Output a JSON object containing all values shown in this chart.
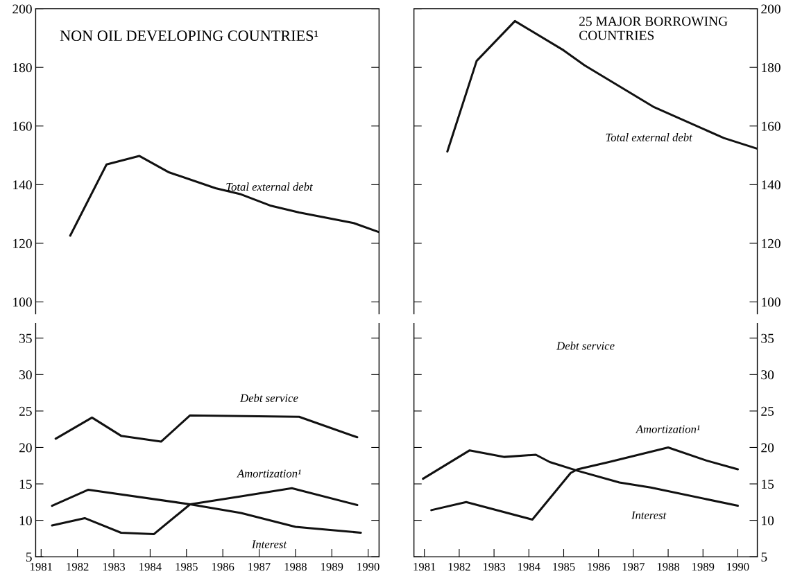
{
  "chart_data": [
    {
      "type": "line",
      "title": "NON OIL DEVELOPING COUNTRIES¹",
      "xlim": [
        1980.85,
        1990.3
      ],
      "ylim": [
        96,
        200
      ],
      "yticks": [
        100,
        120,
        140,
        160,
        180,
        200
      ],
      "tick_labels": "y",
      "grid": false,
      "legend": false,
      "series": [
        {
          "name": "Total external debt",
          "color": "#111111",
          "x": [
            1981.8,
            1982.8,
            1983.7,
            1984.5,
            1985.8,
            1986.5,
            1987.3,
            1988.1,
            1989.6,
            1990.3
          ],
          "values": [
            122.6,
            146.9,
            149.8,
            144.3,
            138.8,
            136.7,
            132.9,
            130.5,
            126.9,
            123.8
          ]
        }
      ]
    },
    {
      "type": "line",
      "xlim": [
        1980.85,
        1990.3
      ],
      "xticks": [
        1981,
        1982,
        1983,
        1984,
        1985,
        1986,
        1987,
        1988,
        1989,
        1990
      ],
      "ylim": [
        5,
        37
      ],
      "yticks": [
        5,
        10,
        15,
        20,
        25,
        30,
        35
      ],
      "grid": false,
      "legend": false,
      "series": [
        {
          "name": "Debt service",
          "color": "#111111",
          "x": [
            1981.4,
            1982.4,
            1983.2,
            1984.3,
            1985.1,
            1988.1,
            1989.7
          ],
          "values": [
            21.2,
            24.1,
            21.6,
            20.8,
            24.4,
            24.2,
            21.4
          ]
        },
        {
          "name": "Amortization¹",
          "color": "#111111",
          "x": [
            1981.3,
            1982.2,
            1983.2,
            1984.1,
            1985.1,
            1986.5,
            1987.9,
            1989.7
          ],
          "values": [
            9.3,
            10.3,
            8.3,
            8.1,
            12.2,
            13.3,
            14.4,
            12.1
          ]
        },
        {
          "name": "Interest",
          "color": "#111111",
          "x": [
            1981.3,
            1982.3,
            1985.1,
            1986.5,
            1988.0,
            1989.8
          ],
          "values": [
            12.0,
            14.2,
            12.2,
            11.0,
            9.1,
            8.3
          ]
        }
      ]
    },
    {
      "type": "line",
      "title": "25 MAJOR BORROWING COUNTRIES",
      "xlim": [
        1980.7,
        1990.56
      ],
      "y2lim": [
        96,
        200
      ],
      "y2ticks": [
        100,
        120,
        140,
        160,
        180,
        200
      ],
      "tick_labels": "y",
      "grid": false,
      "legend": false,
      "series": [
        {
          "name": "Total external debt",
          "axis": "y2",
          "color": "#111111",
          "x": [
            1981.66,
            1982.5,
            1983.6,
            1985.0,
            1985.6,
            1987.6,
            1989.6,
            1990.55
          ],
          "values": [
            151.3,
            182.2,
            195.8,
            185.8,
            180.7,
            166.4,
            155.9,
            152.3
          ]
        }
      ]
    },
    {
      "type": "line",
      "annotations": [
        "Debt service"
      ],
      "xlim": [
        1980.7,
        1990.56
      ],
      "xticks": [
        1981,
        1982,
        1983,
        1984,
        1985,
        1986,
        1987,
        1988,
        1989,
        1990
      ],
      "y2lim": [
        5,
        37
      ],
      "y2ticks": [
        5,
        10,
        15,
        20,
        25,
        30,
        35
      ],
      "grid": false,
      "legend": false,
      "series": [
        {
          "name": "Amortization¹",
          "axis": "y2",
          "color": "#111111",
          "x": [
            1981.2,
            1982.2,
            1984.1,
            1985.2,
            1985.4,
            1986.3,
            1988.0,
            1989.1,
            1990.0
          ],
          "values": [
            11.4,
            12.5,
            10.1,
            16.5,
            17.0,
            18.0,
            20.0,
            18.2,
            17.0
          ]
        },
        {
          "name": "Interest",
          "axis": "y2",
          "color": "#111111",
          "x": [
            1980.96,
            1982.3,
            1983.3,
            1984.2,
            1984.6,
            1985.4,
            1986.6,
            1987.5,
            1990.0
          ],
          "values": [
            15.7,
            19.6,
            18.7,
            19.0,
            18.0,
            16.8,
            15.2,
            14.5,
            12.0
          ]
        }
      ]
    }
  ]
}
